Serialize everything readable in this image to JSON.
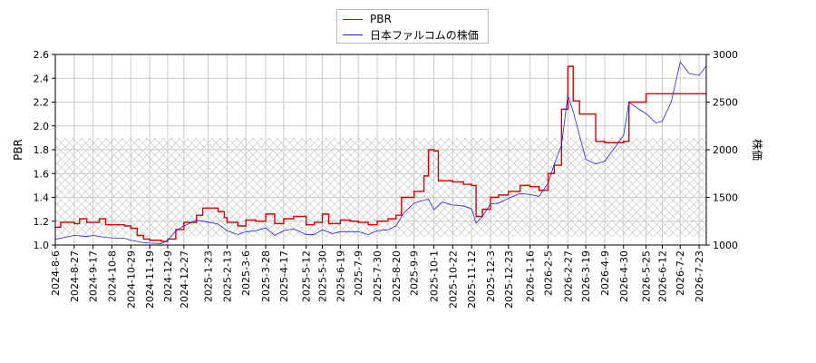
{
  "chart_data": {
    "type": "line",
    "title": "",
    "xlabel": "",
    "ylabel_left": "PBR",
    "ylabel_right": "株価",
    "ylim_left": [
      1.0,
      2.6
    ],
    "ylim_right": [
      1000,
      3000
    ],
    "yticks_left": [
      "1.0",
      "1.2",
      "1.4",
      "1.6",
      "1.8",
      "2.0",
      "2.2",
      "2.4",
      "2.6"
    ],
    "yticks_right": [
      "1000",
      "1500",
      "2000",
      "2500",
      "3000"
    ],
    "x_range": [
      "2024-8-6",
      "2026-7-31"
    ],
    "x_ticks": [
      "2024-8-6",
      "2024-8-27",
      "2024-9-17",
      "2024-10-8",
      "2024-10-29",
      "2024-11-19",
      "2024-12-9",
      "2024-12-27",
      "2025-1-23",
      "2025-2-13",
      "2025-3-6",
      "2025-3-28",
      "2025-4-17",
      "2025-5-12",
      "2025-5-30",
      "2025-6-19",
      "2025-7-9",
      "2025-7-30",
      "2025-8-20",
      "2025-9-9",
      "2025-10-1",
      "2025-10-22",
      "2025-11-12",
      "2025-12-3",
      "2025-12-23",
      "2026-1-16",
      "2026-2-5",
      "2026-2-27",
      "2026-3-19",
      "2026-4-9",
      "2026-4-30",
      "2026-5-25",
      "2026-6-12",
      "2026-7-2",
      "2026-7-23"
    ],
    "grid": true,
    "legend_placement": "top-center",
    "shaded_band_left": [
      1.07,
      1.9
    ],
    "series": [
      {
        "name": "PBR",
        "axis": "left",
        "color": "#dd0000",
        "points": [
          [
            "2024-8-6",
            1.15
          ],
          [
            "2024-8-12",
            1.19
          ],
          [
            "2024-8-27",
            1.18
          ],
          [
            "2024-9-2",
            1.22
          ],
          [
            "2024-9-10",
            1.19
          ],
          [
            "2024-9-17",
            1.19
          ],
          [
            "2024-9-24",
            1.22
          ],
          [
            "2024-10-1",
            1.17
          ],
          [
            "2024-10-8",
            1.17
          ],
          [
            "2024-10-22",
            1.16
          ],
          [
            "2024-10-29",
            1.14
          ],
          [
            "2024-11-5",
            1.08
          ],
          [
            "2024-11-12",
            1.05
          ],
          [
            "2024-11-19",
            1.04
          ],
          [
            "2024-12-2",
            1.03
          ],
          [
            "2024-12-9",
            1.05
          ],
          [
            "2024-12-18",
            1.13
          ],
          [
            "2024-12-27",
            1.19
          ],
          [
            "2025-1-10",
            1.25
          ],
          [
            "2025-1-17",
            1.31
          ],
          [
            "2025-1-23",
            1.31
          ],
          [
            "2025-2-3",
            1.28
          ],
          [
            "2025-2-10",
            1.23
          ],
          [
            "2025-2-13",
            1.19
          ],
          [
            "2025-2-25",
            1.16
          ],
          [
            "2025-3-6",
            1.21
          ],
          [
            "2025-3-17",
            1.2
          ],
          [
            "2025-3-28",
            1.26
          ],
          [
            "2025-4-7",
            1.18
          ],
          [
            "2025-4-17",
            1.22
          ],
          [
            "2025-4-28",
            1.24
          ],
          [
            "2025-5-12",
            1.17
          ],
          [
            "2025-5-21",
            1.19
          ],
          [
            "2025-5-30",
            1.26
          ],
          [
            "2025-6-6",
            1.18
          ],
          [
            "2025-6-19",
            1.21
          ],
          [
            "2025-6-30",
            1.2
          ],
          [
            "2025-7-9",
            1.19
          ],
          [
            "2025-7-20",
            1.17
          ],
          [
            "2025-7-30",
            1.2
          ],
          [
            "2025-8-11",
            1.22
          ],
          [
            "2025-8-20",
            1.25
          ],
          [
            "2025-8-26",
            1.4
          ],
          [
            "2025-9-9",
            1.45
          ],
          [
            "2025-9-20",
            1.58
          ],
          [
            "2025-9-25",
            1.8
          ],
          [
            "2025-10-1",
            1.79
          ],
          [
            "2025-10-6",
            1.54
          ],
          [
            "2025-10-22",
            1.53
          ],
          [
            "2025-11-3",
            1.51
          ],
          [
            "2025-11-12",
            1.5
          ],
          [
            "2025-11-17",
            1.24
          ],
          [
            "2025-11-24",
            1.3
          ],
          [
            "2025-12-3",
            1.4
          ],
          [
            "2025-12-12",
            1.42
          ],
          [
            "2025-12-23",
            1.45
          ],
          [
            "2026-1-5",
            1.5
          ],
          [
            "2026-1-16",
            1.49
          ],
          [
            "2026-1-26",
            1.46
          ],
          [
            "2026-2-5",
            1.6
          ],
          [
            "2026-2-12",
            1.67
          ],
          [
            "2026-2-20",
            2.14
          ],
          [
            "2026-2-27",
            2.5
          ],
          [
            "2026-3-5",
            2.21
          ],
          [
            "2026-3-12",
            2.1
          ],
          [
            "2026-3-19",
            2.1
          ],
          [
            "2026-3-30",
            1.87
          ],
          [
            "2026-4-9",
            1.86
          ],
          [
            "2026-4-20",
            1.86
          ],
          [
            "2026-4-30",
            1.87
          ],
          [
            "2026-5-6",
            2.2
          ],
          [
            "2026-5-18",
            2.2
          ],
          [
            "2026-5-25",
            2.27
          ],
          [
            "2026-6-12",
            2.27
          ],
          [
            "2026-7-2",
            2.27
          ],
          [
            "2026-7-23",
            2.27
          ],
          [
            "2026-7-31",
            2.27
          ]
        ]
      },
      {
        "name": "日本ファルコムの株価",
        "axis": "right",
        "color": "#2222dd",
        "points": [
          [
            "2024-8-6",
            1060
          ],
          [
            "2024-8-16",
            1080
          ],
          [
            "2024-8-27",
            1100
          ],
          [
            "2024-9-10",
            1090
          ],
          [
            "2024-9-17",
            1100
          ],
          [
            "2024-10-1",
            1080
          ],
          [
            "2024-10-8",
            1075
          ],
          [
            "2024-10-22",
            1070
          ],
          [
            "2024-10-29",
            1050
          ],
          [
            "2024-11-12",
            1025
          ],
          [
            "2024-11-19",
            1020
          ],
          [
            "2024-12-2",
            1015
          ],
          [
            "2024-12-9",
            1050
          ],
          [
            "2024-12-18",
            1150
          ],
          [
            "2024-12-27",
            1200
          ],
          [
            "2025-1-10",
            1260
          ],
          [
            "2025-1-23",
            1240
          ],
          [
            "2025-2-3",
            1220
          ],
          [
            "2025-2-13",
            1150
          ],
          [
            "2025-2-25",
            1110
          ],
          [
            "2025-3-6",
            1140
          ],
          [
            "2025-3-17",
            1150
          ],
          [
            "2025-3-28",
            1180
          ],
          [
            "2025-4-7",
            1100
          ],
          [
            "2025-4-17",
            1150
          ],
          [
            "2025-4-28",
            1170
          ],
          [
            "2025-5-12",
            1110
          ],
          [
            "2025-5-21",
            1110
          ],
          [
            "2025-5-30",
            1160
          ],
          [
            "2025-6-10",
            1120
          ],
          [
            "2025-6-19",
            1140
          ],
          [
            "2025-7-9",
            1140
          ],
          [
            "2025-7-20",
            1110
          ],
          [
            "2025-7-30",
            1150
          ],
          [
            "2025-8-11",
            1160
          ],
          [
            "2025-8-20",
            1200
          ],
          [
            "2025-8-28",
            1330
          ],
          [
            "2025-9-9",
            1440
          ],
          [
            "2025-9-20",
            1470
          ],
          [
            "2025-9-25",
            1480
          ],
          [
            "2025-10-1",
            1370
          ],
          [
            "2025-10-10",
            1450
          ],
          [
            "2025-10-22",
            1420
          ],
          [
            "2025-11-3",
            1410
          ],
          [
            "2025-11-12",
            1380
          ],
          [
            "2025-11-17",
            1230
          ],
          [
            "2025-11-24",
            1300
          ],
          [
            "2025-12-3",
            1430
          ],
          [
            "2025-12-12",
            1440
          ],
          [
            "2025-12-23",
            1490
          ],
          [
            "2026-1-5",
            1540
          ],
          [
            "2026-1-16",
            1530
          ],
          [
            "2026-1-26",
            1510
          ],
          [
            "2026-2-5",
            1650
          ],
          [
            "2026-2-12",
            1850
          ],
          [
            "2026-2-20",
            2050
          ],
          [
            "2026-2-27",
            2570
          ],
          [
            "2026-3-5",
            2400
          ],
          [
            "2026-3-12",
            2150
          ],
          [
            "2026-3-19",
            1900
          ],
          [
            "2026-3-30",
            1850
          ],
          [
            "2026-4-9",
            1880
          ],
          [
            "2026-4-20",
            2020
          ],
          [
            "2026-4-30",
            2150
          ],
          [
            "2026-5-6",
            2500
          ],
          [
            "2026-5-18",
            2420
          ],
          [
            "2026-5-25",
            2380
          ],
          [
            "2026-6-5",
            2280
          ],
          [
            "2026-6-12",
            2300
          ],
          [
            "2026-6-22",
            2500
          ],
          [
            "2026-7-2",
            2920
          ],
          [
            "2026-7-12",
            2800
          ],
          [
            "2026-7-23",
            2780
          ],
          [
            "2026-7-31",
            2880
          ]
        ]
      }
    ]
  }
}
